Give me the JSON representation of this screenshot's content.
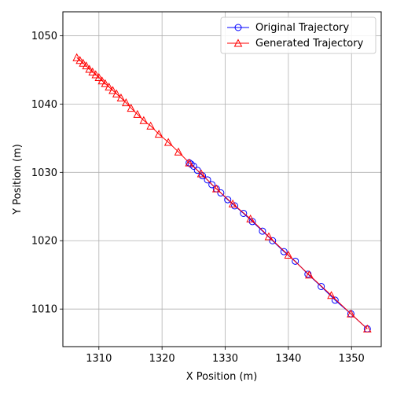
{
  "chart_data": {
    "type": "line",
    "title": "",
    "xlabel": "X Position (m)",
    "ylabel": "Y Position (m)",
    "xlim": [
      1304.3,
      1354.7
    ],
    "ylim": [
      1004.5,
      1053.5
    ],
    "xticks": [
      1310,
      1320,
      1330,
      1340,
      1350
    ],
    "yticks": [
      1010,
      1020,
      1030,
      1040,
      1050
    ],
    "grid": true,
    "legend_position": "top-right",
    "series": [
      {
        "name": "Original Trajectory",
        "color": "#0000ff",
        "marker": "circle",
        "points": [
          [
            1324.3,
            1031.4
          ],
          [
            1324.6,
            1031.2
          ],
          [
            1325.0,
            1030.9
          ],
          [
            1325.6,
            1030.3
          ],
          [
            1326.4,
            1029.5
          ],
          [
            1327.2,
            1028.9
          ],
          [
            1327.9,
            1028.2
          ],
          [
            1328.6,
            1027.6
          ],
          [
            1329.3,
            1027.0
          ],
          [
            1330.4,
            1026.0
          ],
          [
            1331.5,
            1025.1
          ],
          [
            1332.9,
            1024.0
          ],
          [
            1334.3,
            1022.8
          ],
          [
            1335.9,
            1021.4
          ],
          [
            1337.5,
            1020.0
          ],
          [
            1339.3,
            1018.4
          ],
          [
            1341.1,
            1017.0
          ],
          [
            1343.1,
            1015.1
          ],
          [
            1345.2,
            1013.3
          ],
          [
            1347.4,
            1011.3
          ],
          [
            1349.9,
            1009.3
          ],
          [
            1352.5,
            1007.1
          ]
        ]
      },
      {
        "name": "Generated Trajectory",
        "color": "#ff0000",
        "marker": "triangle",
        "points": [
          [
            1306.5,
            1046.8
          ],
          [
            1307.0,
            1046.4
          ],
          [
            1307.5,
            1046.0
          ],
          [
            1308.0,
            1045.6
          ],
          [
            1308.5,
            1045.1
          ],
          [
            1309.0,
            1044.7
          ],
          [
            1309.5,
            1044.3
          ],
          [
            1310.0,
            1043.9
          ],
          [
            1310.5,
            1043.4
          ],
          [
            1311.0,
            1043.0
          ],
          [
            1311.6,
            1042.5
          ],
          [
            1312.2,
            1042.0
          ],
          [
            1312.8,
            1041.5
          ],
          [
            1313.5,
            1040.9
          ],
          [
            1314.3,
            1040.2
          ],
          [
            1315.1,
            1039.4
          ],
          [
            1316.1,
            1038.5
          ],
          [
            1317.1,
            1037.6
          ],
          [
            1318.2,
            1036.8
          ],
          [
            1319.5,
            1035.6
          ],
          [
            1321.0,
            1034.4
          ],
          [
            1322.6,
            1033.0
          ],
          [
            1324.3,
            1031.4
          ],
          [
            1326.2,
            1029.8
          ],
          [
            1328.6,
            1027.6
          ],
          [
            1331.2,
            1025.4
          ],
          [
            1334.0,
            1023.2
          ],
          [
            1336.9,
            1020.6
          ],
          [
            1340.0,
            1017.9
          ],
          [
            1343.3,
            1015.0
          ],
          [
            1346.8,
            1012.0
          ],
          [
            1349.9,
            1009.3
          ],
          [
            1352.5,
            1007.1
          ]
        ]
      }
    ]
  }
}
